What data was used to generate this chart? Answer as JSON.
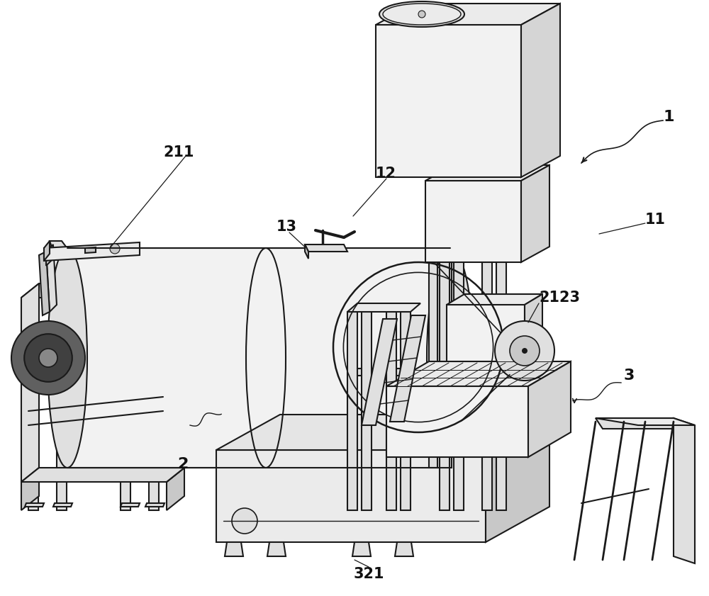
{
  "bg_color": "#ffffff",
  "lc": "#1a1a1a",
  "figsize": [
    10.0,
    8.41
  ],
  "dpi": 100,
  "label_fontsize": 15,
  "light_fill": "#f2f2f2",
  "mid_fill": "#e0e0e0",
  "dark_fill": "#c8c8c8",
  "top_fill": "#ebebeb",
  "shadow_fill": "#d5d5d5"
}
